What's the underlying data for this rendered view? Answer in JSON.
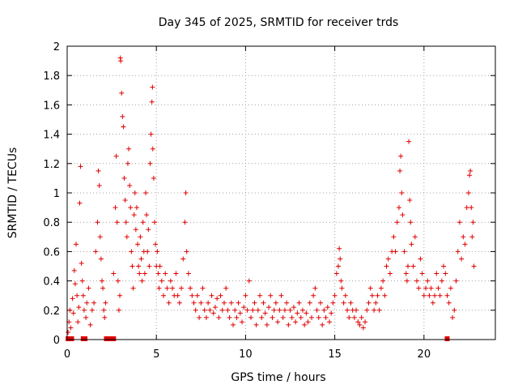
{
  "chart_data": {
    "type": "scatter",
    "title": "Day 345 of 2025, SRMTID for receiver trds",
    "xlabel": "GPS time / hours",
    "ylabel": "SRMTID / TECUs",
    "xlim": [
      0,
      24
    ],
    "ylim": [
      0,
      2
    ],
    "x_ticks": [
      0,
      5,
      10,
      15,
      20
    ],
    "y_ticks": [
      0,
      0.2,
      0.4,
      0.6,
      0.8,
      1,
      1.2,
      1.4,
      1.6,
      1.8,
      2
    ],
    "grid": true,
    "marker": "+",
    "series_color": "#e00000",
    "zero_markers": [
      0.05,
      0.15,
      0.25,
      0.9,
      1.0,
      2.2,
      2.3,
      2.4,
      2.5,
      2.6,
      21.3
    ],
    "series": [
      {
        "name": "SRMTID",
        "points": [
          [
            0.05,
            0.05
          ],
          [
            0.1,
            0.12
          ],
          [
            0.15,
            0.2
          ],
          [
            0.2,
            0.08
          ],
          [
            0.3,
            0.28
          ],
          [
            0.35,
            0.18
          ],
          [
            0.4,
            0.47
          ],
          [
            0.45,
            0.38
          ],
          [
            0.5,
            0.65
          ],
          [
            0.55,
            0.3
          ],
          [
            0.6,
            0.12
          ],
          [
            0.65,
            0.22
          ],
          [
            0.7,
            0.93
          ],
          [
            0.75,
            1.18
          ],
          [
            0.8,
            0.52
          ],
          [
            0.85,
            0.4
          ],
          [
            0.9,
            0.3
          ],
          [
            0.95,
            0.2
          ],
          [
            1.05,
            0.15
          ],
          [
            1.1,
            0.25
          ],
          [
            1.2,
            0.35
          ],
          [
            1.3,
            0.1
          ],
          [
            1.4,
            0.2
          ],
          [
            1.5,
            0.25
          ],
          [
            1.6,
            0.6
          ],
          [
            1.7,
            0.8
          ],
          [
            1.75,
            1.15
          ],
          [
            1.8,
            1.05
          ],
          [
            1.85,
            0.7
          ],
          [
            1.9,
            0.55
          ],
          [
            1.95,
            0.4
          ],
          [
            2.0,
            0.35
          ],
          [
            2.05,
            0.2
          ],
          [
            2.1,
            0.15
          ],
          [
            2.15,
            0.25
          ],
          [
            2.6,
            0.45
          ],
          [
            2.7,
            0.9
          ],
          [
            2.75,
            1.25
          ],
          [
            2.8,
            0.8
          ],
          [
            2.85,
            0.4
          ],
          [
            2.9,
            0.2
          ],
          [
            2.95,
            0.3
          ],
          [
            2.98,
            1.92
          ],
          [
            3.0,
            1.9
          ],
          [
            3.05,
            1.68
          ],
          [
            3.1,
            1.52
          ],
          [
            3.15,
            1.45
          ],
          [
            3.2,
            1.1
          ],
          [
            3.25,
            0.95
          ],
          [
            3.3,
            0.8
          ],
          [
            3.35,
            0.7
          ],
          [
            3.4,
            1.2
          ],
          [
            3.45,
            1.3
          ],
          [
            3.5,
            1.05
          ],
          [
            3.55,
            0.9
          ],
          [
            3.6,
            0.6
          ],
          [
            3.65,
            0.5
          ],
          [
            3.7,
            0.35
          ],
          [
            3.75,
            0.85
          ],
          [
            3.8,
            1.0
          ],
          [
            3.85,
            0.75
          ],
          [
            3.9,
            0.9
          ],
          [
            3.95,
            0.65
          ],
          [
            4.0,
            0.5
          ],
          [
            4.05,
            0.45
          ],
          [
            4.1,
            0.7
          ],
          [
            4.15,
            0.55
          ],
          [
            4.2,
            0.4
          ],
          [
            4.25,
            0.8
          ],
          [
            4.3,
            0.6
          ],
          [
            4.35,
            0.45
          ],
          [
            4.4,
            1.0
          ],
          [
            4.45,
            0.85
          ],
          [
            4.5,
            0.6
          ],
          [
            4.55,
            0.75
          ],
          [
            4.6,
            0.5
          ],
          [
            4.65,
            1.2
          ],
          [
            4.7,
            1.4
          ],
          [
            4.75,
            1.62
          ],
          [
            4.78,
            1.72
          ],
          [
            4.8,
            1.3
          ],
          [
            4.85,
            1.1
          ],
          [
            4.9,
            0.8
          ],
          [
            4.95,
            0.65
          ],
          [
            5.0,
            0.5
          ],
          [
            5.05,
            0.6
          ],
          [
            5.1,
            0.45
          ],
          [
            5.15,
            0.35
          ],
          [
            5.2,
            0.5
          ],
          [
            5.3,
            0.4
          ],
          [
            5.4,
            0.3
          ],
          [
            5.5,
            0.45
          ],
          [
            5.6,
            0.35
          ],
          [
            5.7,
            0.25
          ],
          [
            5.8,
            0.4
          ],
          [
            5.9,
            0.35
          ],
          [
            6.0,
            0.3
          ],
          [
            6.1,
            0.45
          ],
          [
            6.2,
            0.3
          ],
          [
            6.3,
            0.25
          ],
          [
            6.4,
            0.35
          ],
          [
            6.5,
            0.55
          ],
          [
            6.6,
            0.8
          ],
          [
            6.65,
            1.0
          ],
          [
            6.7,
            0.6
          ],
          [
            6.8,
            0.45
          ],
          [
            6.9,
            0.35
          ],
          [
            7.0,
            0.3
          ],
          [
            7.1,
            0.25
          ],
          [
            7.2,
            0.2
          ],
          [
            7.3,
            0.3
          ],
          [
            7.4,
            0.15
          ],
          [
            7.5,
            0.25
          ],
          [
            7.6,
            0.35
          ],
          [
            7.7,
            0.2
          ],
          [
            7.8,
            0.15
          ],
          [
            7.9,
            0.25
          ],
          [
            8.0,
            0.2
          ],
          [
            8.1,
            0.3
          ],
          [
            8.2,
            0.18
          ],
          [
            8.3,
            0.22
          ],
          [
            8.4,
            0.28
          ],
          [
            8.5,
            0.15
          ],
          [
            8.6,
            0.3
          ],
          [
            8.7,
            0.2
          ],
          [
            8.8,
            0.25
          ],
          [
            8.9,
            0.35
          ],
          [
            9.0,
            0.2
          ],
          [
            9.1,
            0.15
          ],
          [
            9.2,
            0.25
          ],
          [
            9.3,
            0.1
          ],
          [
            9.4,
            0.2
          ],
          [
            9.5,
            0.15
          ],
          [
            9.6,
            0.25
          ],
          [
            9.7,
            0.18
          ],
          [
            9.8,
            0.12
          ],
          [
            9.9,
            0.22
          ],
          [
            10.0,
            0.3
          ],
          [
            10.1,
            0.2
          ],
          [
            10.2,
            0.4
          ],
          [
            10.3,
            0.15
          ],
          [
            10.4,
            0.2
          ],
          [
            10.5,
            0.25
          ],
          [
            10.6,
            0.1
          ],
          [
            10.7,
            0.2
          ],
          [
            10.8,
            0.3
          ],
          [
            10.9,
            0.15
          ],
          [
            11.0,
            0.25
          ],
          [
            11.1,
            0.18
          ],
          [
            11.2,
            0.1
          ],
          [
            11.3,
            0.22
          ],
          [
            11.4,
            0.3
          ],
          [
            11.5,
            0.15
          ],
          [
            11.6,
            0.2
          ],
          [
            11.7,
            0.25
          ],
          [
            11.8,
            0.12
          ],
          [
            11.9,
            0.2
          ],
          [
            12.0,
            0.3
          ],
          [
            12.1,
            0.15
          ],
          [
            12.2,
            0.2
          ],
          [
            12.3,
            0.25
          ],
          [
            12.4,
            0.1
          ],
          [
            12.5,
            0.2
          ],
          [
            12.6,
            0.15
          ],
          [
            12.7,
            0.22
          ],
          [
            12.8,
            0.12
          ],
          [
            12.9,
            0.18
          ],
          [
            13.0,
            0.25
          ],
          [
            13.1,
            0.15
          ],
          [
            13.2,
            0.2
          ],
          [
            13.3,
            0.1
          ],
          [
            13.4,
            0.18
          ],
          [
            13.5,
            0.12
          ],
          [
            13.6,
            0.25
          ],
          [
            13.7,
            0.15
          ],
          [
            13.8,
            0.3
          ],
          [
            13.9,
            0.35
          ],
          [
            14.0,
            0.2
          ],
          [
            14.1,
            0.15
          ],
          [
            14.2,
            0.25
          ],
          [
            14.3,
            0.1
          ],
          [
            14.4,
            0.2
          ],
          [
            14.5,
            0.15
          ],
          [
            14.6,
            0.22
          ],
          [
            14.7,
            0.12
          ],
          [
            14.8,
            0.18
          ],
          [
            14.9,
            0.25
          ],
          [
            15.0,
            0.3
          ],
          [
            15.1,
            0.45
          ],
          [
            15.2,
            0.5
          ],
          [
            15.25,
            0.62
          ],
          [
            15.3,
            0.55
          ],
          [
            15.35,
            0.4
          ],
          [
            15.4,
            0.35
          ],
          [
            15.5,
            0.25
          ],
          [
            15.6,
            0.3
          ],
          [
            15.7,
            0.2
          ],
          [
            15.8,
            0.15
          ],
          [
            15.9,
            0.25
          ],
          [
            16.0,
            0.2
          ],
          [
            16.1,
            0.15
          ],
          [
            16.2,
            0.2
          ],
          [
            16.3,
            0.12
          ],
          [
            16.4,
            0.1
          ],
          [
            16.5,
            0.15
          ],
          [
            16.6,
            0.08
          ],
          [
            16.7,
            0.12
          ],
          [
            16.8,
            0.2
          ],
          [
            16.9,
            0.25
          ],
          [
            17.0,
            0.35
          ],
          [
            17.1,
            0.3
          ],
          [
            17.2,
            0.2
          ],
          [
            17.3,
            0.25
          ],
          [
            17.4,
            0.3
          ],
          [
            17.5,
            0.2
          ],
          [
            17.6,
            0.35
          ],
          [
            17.7,
            0.4
          ],
          [
            17.8,
            0.3
          ],
          [
            17.9,
            0.5
          ],
          [
            18.0,
            0.55
          ],
          [
            18.1,
            0.45
          ],
          [
            18.2,
            0.6
          ],
          [
            18.3,
            0.7
          ],
          [
            18.4,
            0.6
          ],
          [
            18.5,
            0.8
          ],
          [
            18.6,
            0.9
          ],
          [
            18.65,
            1.15
          ],
          [
            18.7,
            1.25
          ],
          [
            18.75,
            1.0
          ],
          [
            18.8,
            0.85
          ],
          [
            18.9,
            0.6
          ],
          [
            19.0,
            0.45
          ],
          [
            19.05,
            0.4
          ],
          [
            19.1,
            0.5
          ],
          [
            19.15,
            1.35
          ],
          [
            19.2,
            0.95
          ],
          [
            19.25,
            0.8
          ],
          [
            19.3,
            0.65
          ],
          [
            19.4,
            0.5
          ],
          [
            19.5,
            0.7
          ],
          [
            19.6,
            0.4
          ],
          [
            19.7,
            0.35
          ],
          [
            19.8,
            0.55
          ],
          [
            19.9,
            0.45
          ],
          [
            20.0,
            0.3
          ],
          [
            20.1,
            0.35
          ],
          [
            20.2,
            0.4
          ],
          [
            20.3,
            0.3
          ],
          [
            20.4,
            0.35
          ],
          [
            20.5,
            0.25
          ],
          [
            20.6,
            0.3
          ],
          [
            20.7,
            0.45
          ],
          [
            20.8,
            0.35
          ],
          [
            20.9,
            0.3
          ],
          [
            21.0,
            0.4
          ],
          [
            21.1,
            0.5
          ],
          [
            21.2,
            0.45
          ],
          [
            21.3,
            0.3
          ],
          [
            21.4,
            0.25
          ],
          [
            21.5,
            0.35
          ],
          [
            21.6,
            0.15
          ],
          [
            21.7,
            0.2
          ],
          [
            21.8,
            0.4
          ],
          [
            21.9,
            0.6
          ],
          [
            22.0,
            0.8
          ],
          [
            22.1,
            0.55
          ],
          [
            22.2,
            0.7
          ],
          [
            22.3,
            0.65
          ],
          [
            22.4,
            0.9
          ],
          [
            22.5,
            1.0
          ],
          [
            22.55,
            1.12
          ],
          [
            22.6,
            1.15
          ],
          [
            22.65,
            0.9
          ],
          [
            22.7,
            0.7
          ],
          [
            22.75,
            0.8
          ],
          [
            22.8,
            0.5
          ]
        ]
      }
    ]
  }
}
